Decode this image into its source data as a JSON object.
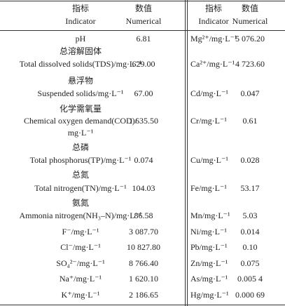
{
  "table": {
    "header": {
      "left_indicator": {
        "zh": "指标",
        "en": "Indicator"
      },
      "left_value": {
        "zh": "数值",
        "en": "Numerical"
      },
      "right_indicator": {
        "zh": "指标",
        "en": "Indicator"
      },
      "right_value": {
        "zh": "数值",
        "en": "Numerical"
      }
    },
    "left_rows": [
      {
        "lines": [
          "pH"
        ],
        "value": "6.81"
      },
      {
        "lines": [
          "总溶解固体",
          "Total dissolved solids(TDS)/mg·L⁻¹"
        ],
        "value": "629.00"
      },
      {
        "lines": [
          "悬浮物",
          "Suspended solids/mg·L⁻¹"
        ],
        "value": "67.00"
      },
      {
        "lines": [
          "化学需氧量",
          "Chemical oxygen demand(COD)/",
          "mg·L⁻¹"
        ],
        "value": "1 635.50"
      },
      {
        "lines": [
          "总磷",
          "Total phosphorus(TP)/mg·L⁻¹"
        ],
        "value": "0.074"
      },
      {
        "lines": [
          "总氮",
          "Total nitrogen(TN)/mg·L⁻¹"
        ],
        "value": "104.03"
      },
      {
        "lines": [
          "氨氮",
          "Ammonia nitrogen(NH₃–N)/mg·L⁻¹"
        ],
        "value": "86.58"
      },
      {
        "lines": [
          "F⁻/mg·L⁻¹"
        ],
        "value": "3 087.70"
      },
      {
        "lines": [
          "Cl⁻/mg·L⁻¹"
        ],
        "value": "10 827.80"
      },
      {
        "lines": [
          "SO₄²⁻/mg·L⁻¹"
        ],
        "value": "8 766.40"
      },
      {
        "lines": [
          "Na⁺/mg·L⁻¹"
        ],
        "value": "1 620.10"
      },
      {
        "lines": [
          "K⁺/mg·L⁻¹"
        ],
        "value": "2 186.65"
      }
    ],
    "right_rows": [
      {
        "name": "Mg²⁺/mg·L⁻¹",
        "value": "5 076.20"
      },
      {
        "name": "Ca²⁺/mg·L⁻¹",
        "value": "4 723.60"
      },
      {
        "name": "Cd/mg·L⁻¹",
        "value": "0.047"
      },
      {
        "name": "Cr/mg·L⁻¹",
        "value": "0.61"
      },
      {
        "name": "Cu/mg·L⁻¹",
        "value": "0.028"
      },
      {
        "name": "Fe/mg·L⁻¹",
        "value": "53.17"
      },
      {
        "name": "Mn/mg·L⁻¹",
        "value": "5.03"
      },
      {
        "name": "Ni/mg·L⁻¹",
        "value": "0.014"
      },
      {
        "name": "Pb/mg·L⁻¹",
        "value": "0.10"
      },
      {
        "name": "Zn/mg·L⁻¹",
        "value": "0.075"
      },
      {
        "name": "As/mg·L⁻¹",
        "value": "0.005 4"
      },
      {
        "name": "Hg/mg·L⁻¹",
        "value": "0.000 69"
      }
    ]
  }
}
